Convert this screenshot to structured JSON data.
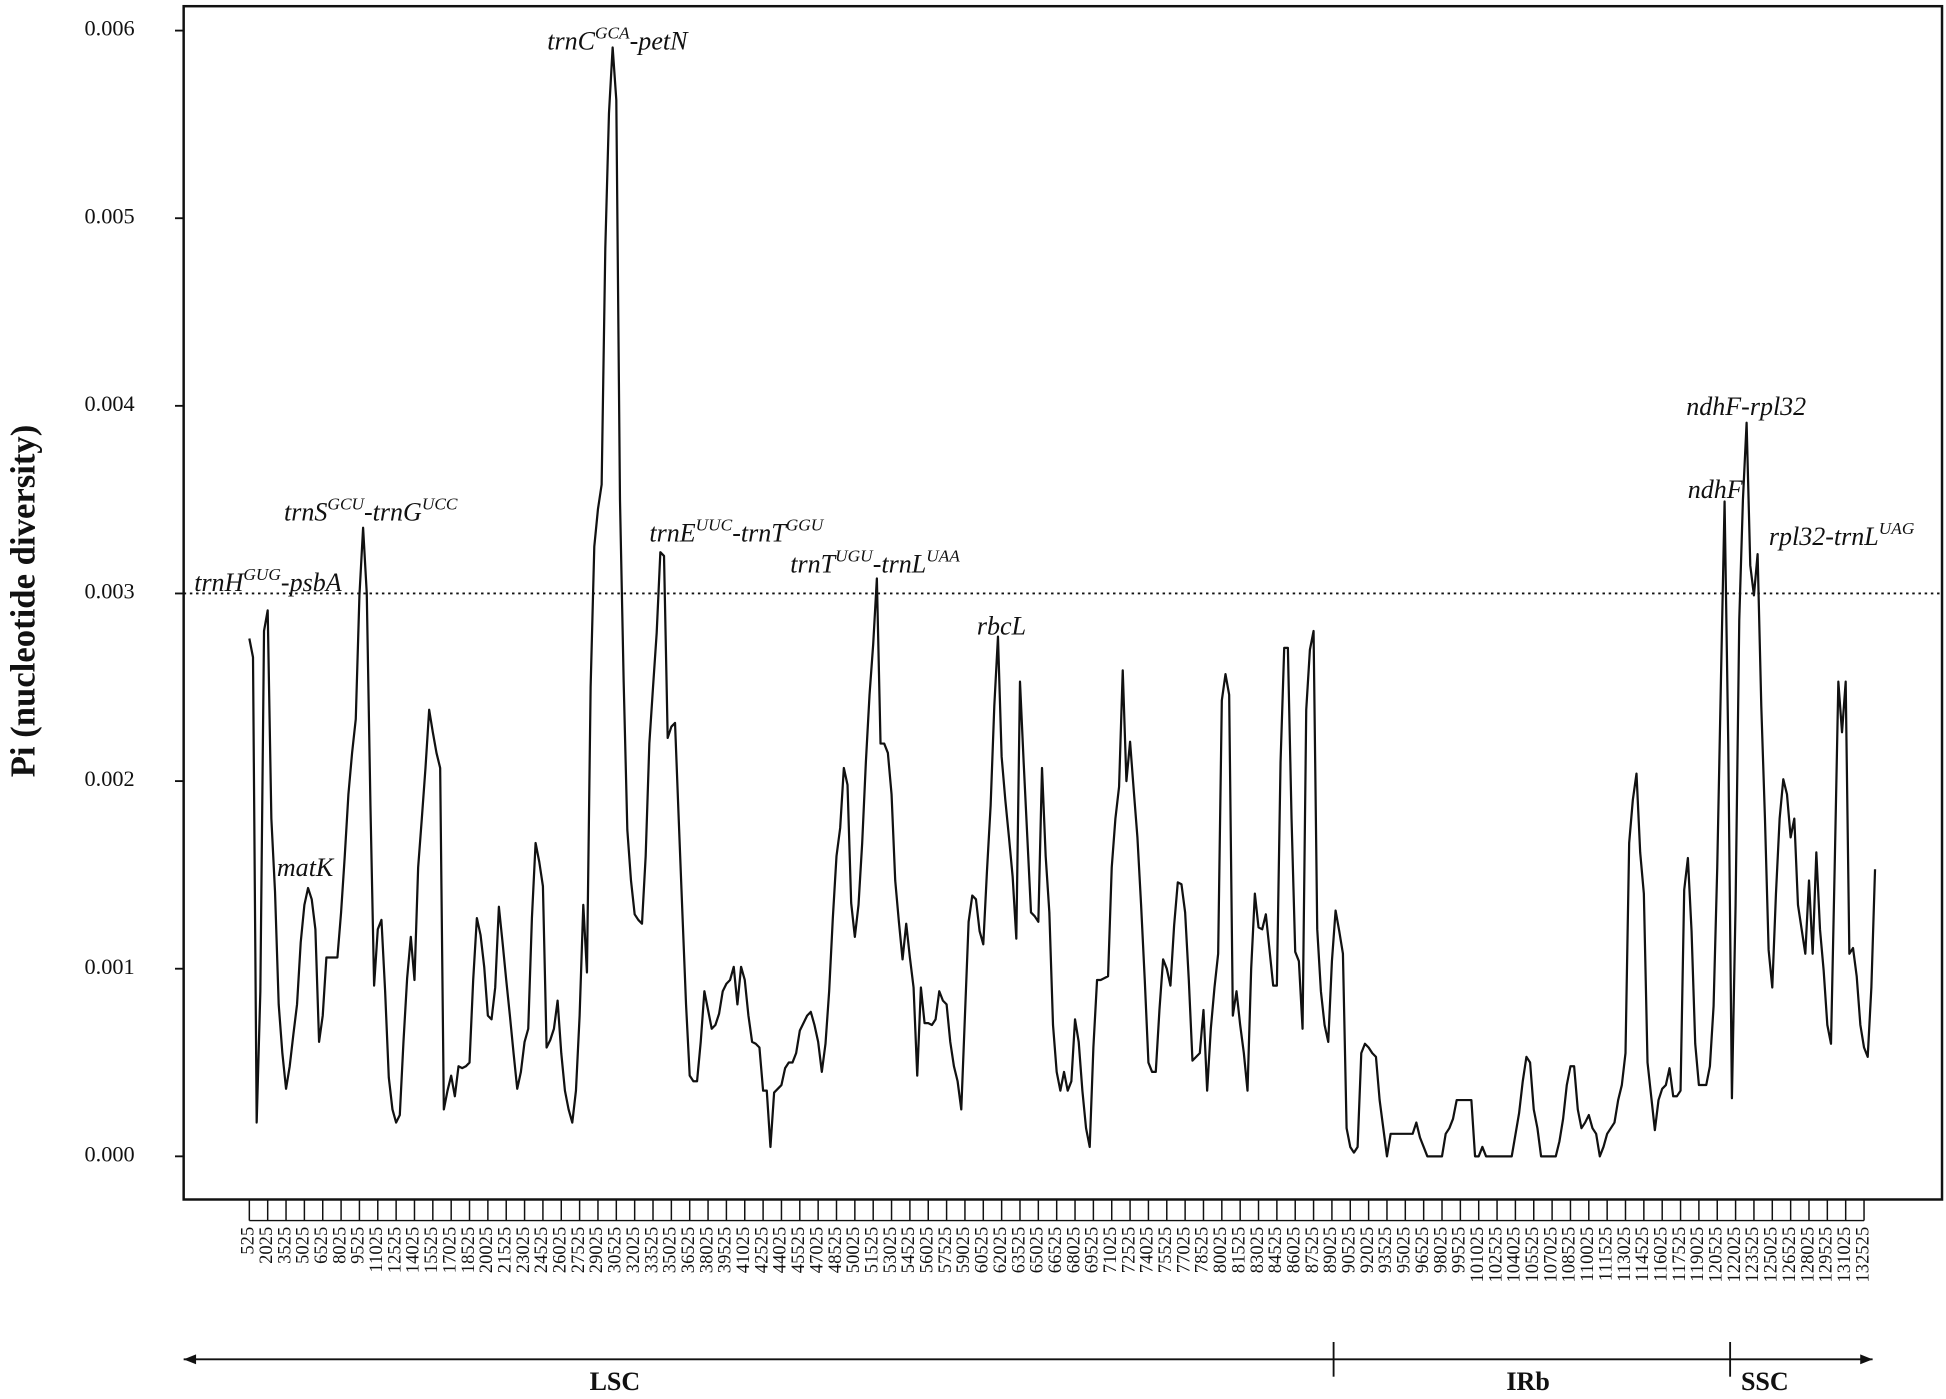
{
  "chart_data": {
    "type": "line",
    "y_label": "Pi (nucleotide diversity)",
    "color": "#111111",
    "grid": false,
    "reference_line": 0.003,
    "xlim": [
      -4844,
      138900
    ],
    "ylim": [
      -0.00023,
      0.00613
    ],
    "yticks": [
      {
        "value": 0,
        "label": "0.000"
      },
      {
        "value": 0.001,
        "label": "0.001"
      },
      {
        "value": 0.002,
        "label": "0.002"
      },
      {
        "value": 0.003,
        "label": "0.003"
      },
      {
        "value": 0.004,
        "label": "0.004"
      },
      {
        "value": 0.005,
        "label": "0.005"
      },
      {
        "value": 0.006,
        "label": "0.006"
      }
    ],
    "xticks": [
      525,
      2025,
      3525,
      5025,
      6525,
      8025,
      9525,
      11025,
      12525,
      14025,
      15525,
      17025,
      18525,
      20025,
      21525,
      23025,
      24525,
      26025,
      27525,
      29025,
      30525,
      32025,
      33525,
      35025,
      36525,
      38025,
      39525,
      41025,
      42525,
      44025,
      45525,
      47025,
      48525,
      50025,
      51525,
      53025,
      54525,
      56025,
      57525,
      59025,
      60525,
      62025,
      63525,
      65025,
      66525,
      68025,
      69525,
      71025,
      72525,
      74025,
      75525,
      77025,
      78525,
      80025,
      81525,
      83025,
      84525,
      86025,
      87525,
      89025,
      90525,
      92025,
      93525,
      95025,
      96525,
      98025,
      99525,
      101025,
      102525,
      104025,
      105525,
      107025,
      108525,
      110025,
      111525,
      113025,
      114525,
      116025,
      117525,
      119025,
      120525,
      122025,
      123525,
      125025,
      126525,
      128025,
      129525,
      131025,
      132525
    ],
    "x": [
      525,
      825,
      1125,
      1425,
      1725,
      2025,
      2325,
      2625,
      2925,
      3225,
      3525,
      3825,
      4125,
      4425,
      4725,
      5025,
      5325,
      5625,
      5925,
      6225,
      6525,
      6825,
      7125,
      7425,
      7725,
      8025,
      8325,
      8625,
      8925,
      9225,
      9525,
      9825,
      10125,
      10425,
      10725,
      11025,
      11325,
      11625,
      11925,
      12225,
      12525,
      12825,
      13125,
      13425,
      13725,
      14025,
      14325,
      14625,
      14925,
      15225,
      15525,
      15825,
      16125,
      16425,
      16725,
      17025,
      17325,
      17625,
      17925,
      18225,
      18525,
      18825,
      19125,
      19425,
      19725,
      20025,
      20325,
      20625,
      20925,
      21225,
      21525,
      21825,
      22125,
      22425,
      22725,
      23025,
      23325,
      23625,
      23925,
      24225,
      24525,
      24825,
      25125,
      25425,
      25725,
      26025,
      26325,
      26625,
      26925,
      27225,
      27525,
      27825,
      28125,
      28425,
      28725,
      29025,
      29325,
      29625,
      29925,
      30225,
      30525,
      30825,
      31125,
      31425,
      31725,
      32025,
      32325,
      32625,
      32925,
      33225,
      33525,
      33825,
      34125,
      34425,
      34725,
      35025,
      35325,
      35625,
      35925,
      36225,
      36525,
      36825,
      37125,
      37425,
      37725,
      38025,
      38325,
      38625,
      38925,
      39225,
      39525,
      39825,
      40125,
      40425,
      40725,
      41025,
      41325,
      41625,
      41925,
      42225,
      42525,
      42825,
      43125,
      43425,
      43725,
      44025,
      44325,
      44625,
      44925,
      45225,
      45525,
      45825,
      46125,
      46425,
      46725,
      47025,
      47325,
      47625,
      47925,
      48225,
      48525,
      48825,
      49125,
      49425,
      49725,
      50025,
      50325,
      50625,
      50925,
      51225,
      51525,
      51825,
      52125,
      52425,
      52725,
      53025,
      53325,
      53625,
      53925,
      54225,
      54525,
      54825,
      55125,
      55425,
      55725,
      56025,
      56325,
      56625,
      56925,
      57225,
      57525,
      57825,
      58125,
      58425,
      58725,
      59025,
      59325,
      59625,
      59925,
      60225,
      60525,
      60825,
      61125,
      61425,
      61725,
      62025,
      62325,
      62625,
      62925,
      63225,
      63525,
      63825,
      64125,
      64425,
      64725,
      65025,
      65325,
      65625,
      65925,
      66225,
      66525,
      66825,
      67125,
      67425,
      67725,
      68025,
      68325,
      68625,
      68925,
      69225,
      69525,
      69825,
      70125,
      70425,
      70725,
      71025,
      71325,
      71625,
      71925,
      72225,
      72525,
      72825,
      73125,
      73425,
      73725,
      74025,
      74325,
      74625,
      74925,
      75225,
      75525,
      75825,
      76125,
      76425,
      76725,
      77025,
      77325,
      77625,
      77925,
      78225,
      78525,
      78825,
      79125,
      79425,
      79725,
      80025,
      80325,
      80625,
      80925,
      81225,
      81525,
      81825,
      82125,
      82425,
      82725,
      83025,
      83325,
      83625,
      83925,
      84225,
      84525,
      84825,
      85125,
      85425,
      85725,
      86025,
      86325,
      86625,
      86925,
      87225,
      87525,
      87825,
      88125,
      88425,
      88725,
      89025,
      89325,
      89625,
      89925,
      90225,
      90525,
      90825,
      91125,
      91425,
      91725,
      92025,
      92325,
      92625,
      92925,
      93225,
      93525,
      93825,
      95625,
      95925,
      96225,
      96525,
      96825,
      98025,
      98325,
      98625,
      98925,
      99225,
      100425,
      100725,
      101025,
      101325,
      101625,
      103725,
      104325,
      104625,
      104925,
      105225,
      105525,
      105825,
      106125,
      107325,
      107625,
      107925,
      108225,
      108525,
      108825,
      109125,
      109425,
      109725,
      110025,
      110325,
      110625,
      110925,
      111225,
      111525,
      111825,
      112125,
      112425,
      112725,
      113025,
      113325,
      113625,
      113925,
      114225,
      114525,
      114825,
      115125,
      115425,
      115725,
      116025,
      116325,
      116625,
      116925,
      117225,
      117525,
      117825,
      118125,
      118425,
      118725,
      119025,
      119325,
      119625,
      119925,
      120225,
      120525,
      120825,
      121125,
      121425,
      121725,
      122025,
      122325,
      122625,
      122925,
      123225,
      123525,
      123825,
      124125,
      124425,
      124725,
      125025,
      125325,
      125625,
      125925,
      126225,
      126525,
      126825,
      127125,
      127425,
      127725,
      128025,
      128325,
      128625,
      128925,
      129225,
      129525,
      129825,
      130125,
      130425,
      130725,
      131025,
      131325,
      131625,
      131925,
      132225,
      132525,
      132825,
      133125,
      133425
    ],
    "values": [
      0.00276,
      0.00266,
      0.00018,
      0.00088,
      0.0028,
      0.00291,
      0.0018,
      0.00141,
      0.00081,
      0.00055,
      0.00036,
      0.00048,
      0.00065,
      0.00081,
      0.00114,
      0.00134,
      0.00143,
      0.00137,
      0.00121,
      0.00061,
      0.00075,
      0.00106,
      0.00106,
      0.00106,
      0.00106,
      0.0013,
      0.0016,
      0.00193,
      0.00215,
      0.00233,
      0.00299,
      0.00335,
      0.003,
      0.00187,
      0.00091,
      0.00121,
      0.00126,
      0.00088,
      0.00042,
      0.00025,
      0.00018,
      0.00022,
      0.00061,
      0.00095,
      0.00117,
      0.00094,
      0.00154,
      0.0018,
      0.00207,
      0.00238,
      0.00226,
      0.00215,
      0.00207,
      0.00025,
      0.00035,
      0.00043,
      0.00032,
      0.00048,
      0.00047,
      0.00048,
      0.0005,
      0.00094,
      0.00127,
      0.00118,
      0.00101,
      0.00075,
      0.00073,
      0.0009,
      0.00133,
      0.00114,
      0.00094,
      0.00075,
      0.00055,
      0.00036,
      0.00045,
      0.00061,
      0.00068,
      0.00127,
      0.00167,
      0.00157,
      0.00144,
      0.00058,
      0.00062,
      0.00068,
      0.00083,
      0.00055,
      0.00035,
      0.00025,
      0.00018,
      0.00035,
      0.00075,
      0.00134,
      0.00098,
      0.0025,
      0.00325,
      0.00345,
      0.00358,
      0.00484,
      0.00556,
      0.00591,
      0.00563,
      0.0035,
      0.00253,
      0.00174,
      0.00147,
      0.00129,
      0.00126,
      0.00124,
      0.0016,
      0.0022,
      0.0025,
      0.00279,
      0.00322,
      0.0032,
      0.00223,
      0.00229,
      0.00231,
      0.0018,
      0.0013,
      0.00081,
      0.00043,
      0.0004,
      0.0004,
      0.00061,
      0.00088,
      0.00078,
      0.00068,
      0.0007,
      0.00076,
      0.00088,
      0.00092,
      0.00094,
      0.00101,
      0.00081,
      0.00101,
      0.00094,
      0.00075,
      0.00061,
      0.0006,
      0.00058,
      0.00035,
      0.00035,
      5e-05,
      0.00034,
      0.00036,
      0.00038,
      0.00047,
      0.0005,
      0.0005,
      0.00055,
      0.00067,
      0.00071,
      0.00075,
      0.00077,
      0.0007,
      0.00061,
      0.00045,
      0.0006,
      0.00088,
      0.00127,
      0.0016,
      0.00175,
      0.00207,
      0.00198,
      0.00135,
      0.00117,
      0.00134,
      0.00167,
      0.0021,
      0.00246,
      0.00273,
      0.00308,
      0.0022,
      0.0022,
      0.00215,
      0.00193,
      0.00147,
      0.00125,
      0.00105,
      0.00124,
      0.00106,
      0.0009,
      0.00043,
      0.0009,
      0.00071,
      0.00071,
      0.0007,
      0.00073,
      0.00088,
      0.00083,
      0.00081,
      0.00061,
      0.00048,
      0.0004,
      0.00025,
      0.00075,
      0.00125,
      0.00139,
      0.00137,
      0.0012,
      0.00113,
      0.00152,
      0.00187,
      0.0024,
      0.00277,
      0.00213,
      0.0019,
      0.0017,
      0.00149,
      0.00116,
      0.00253,
      0.0021,
      0.0017,
      0.0013,
      0.00128,
      0.00125,
      0.00207,
      0.0016,
      0.0013,
      0.0007,
      0.00045,
      0.00035,
      0.00045,
      0.00035,
      0.0004,
      0.00073,
      0.00061,
      0.00035,
      0.00015,
      5e-05,
      0.00058,
      0.00094,
      0.00094,
      0.00095,
      0.00096,
      0.00154,
      0.0018,
      0.00197,
      0.00259,
      0.002,
      0.00221,
      0.00195,
      0.0017,
      0.00134,
      0.00094,
      0.0005,
      0.00045,
      0.00045,
      0.00078,
      0.00105,
      0.001,
      0.00091,
      0.00123,
      0.00146,
      0.00145,
      0.0013,
      0.00094,
      0.00051,
      0.00053,
      0.00055,
      0.00078,
      0.00035,
      0.00068,
      0.0009,
      0.00108,
      0.00243,
      0.00257,
      0.00246,
      0.00075,
      0.00088,
      0.0007,
      0.00055,
      0.00035,
      0.001,
      0.0014,
      0.00122,
      0.00121,
      0.00129,
      0.0011,
      0.00091,
      0.00091,
      0.0021,
      0.00271,
      0.00271,
      0.0018,
      0.00109,
      0.00104,
      0.00068,
      0.00238,
      0.0027,
      0.0028,
      0.00121,
      0.00088,
      0.0007,
      0.00061,
      0.00104,
      0.00131,
      0.0012,
      0.00108,
      0.00015,
      5e-05,
      2e-05,
      5e-05,
      0.00055,
      0.0006,
      0.00058,
      0.00055,
      0.00053,
      0.0003,
      0.00015,
      0,
      0.00012,
      0.00012,
      0.00018,
      0.0001,
      5e-05,
      0,
      0,
      0.00012,
      0.00015,
      0.0002,
      0.0003,
      0.0003,
      0,
      0,
      5e-05,
      0,
      0,
      0.00023,
      0.0004,
      0.00053,
      0.0005,
      0.00025,
      0.00015,
      0,
      0,
      8e-05,
      0.0002,
      0.00038,
      0.00048,
      0.00048,
      0.00025,
      0.00015,
      0.00018,
      0.00022,
      0.00015,
      0.00012,
      0,
      5e-05,
      0.00012,
      0.00015,
      0.00018,
      0.0003,
      0.00038,
      0.00055,
      0.00167,
      0.0019,
      0.00204,
      0.00162,
      0.0014,
      0.0005,
      0.00032,
      0.00014,
      0.0003,
      0.00036,
      0.00038,
      0.00047,
      0.00032,
      0.00032,
      0.00035,
      0.00142,
      0.00159,
      0.0012,
      0.0006,
      0.00038,
      0.00038,
      0.00038,
      0.00048,
      0.0008,
      0.00154,
      0.00253,
      0.00349,
      0.0022,
      0.00031,
      0.00134,
      0.00286,
      0.0035,
      0.00391,
      0.00315,
      0.00299,
      0.00321,
      0.0024,
      0.0018,
      0.0011,
      0.0009,
      0.0014,
      0.0018,
      0.00201,
      0.00193,
      0.0017,
      0.0018,
      0.00134,
      0.00121,
      0.00108,
      0.00147,
      0.00108,
      0.00162,
      0.00121,
      0.00099,
      0.0007,
      0.0006,
      0.00154,
      0.00253,
      0.00226,
      0.00253,
      0.00108,
      0.00111,
      0.00096,
      0.0007,
      0.00058,
      0.00053,
      0.0009,
      0.00153
    ],
    "annotations": [
      [
        {
          "text": "trnH"
        },
        {
          "sup": "GUG"
        },
        {
          "text": "-psbA"
        }
      ],
      [
        {
          "text": "matK"
        }
      ],
      [
        {
          "text": "trnS"
        },
        {
          "sup": "GCU"
        },
        {
          "text": "-trnG"
        },
        {
          "sup": "UCC"
        }
      ],
      [
        {
          "text": "trnC"
        },
        {
          "sup": "GCA"
        },
        {
          "text": "-petN"
        }
      ],
      [
        {
          "text": "trnE"
        },
        {
          "sup": "UUC"
        },
        {
          "text": "-trnT"
        },
        {
          "sup": "GGU"
        }
      ],
      [
        {
          "text": "trnT"
        },
        {
          "sup": "UGU"
        },
        {
          "text": "-trnL"
        },
        {
          "sup": "UAA"
        }
      ],
      [
        {
          "text": "rbcL"
        }
      ],
      [
        {
          "text": "ndhF-rpl32"
        }
      ],
      [
        {
          "text": "ndhF"
        }
      ],
      [
        {
          "text": "rpl32-trnL"
        },
        {
          "sup": "UAG"
        }
      ]
    ],
    "regions": [
      "LSC",
      "IRb",
      "SSC"
    ]
  }
}
